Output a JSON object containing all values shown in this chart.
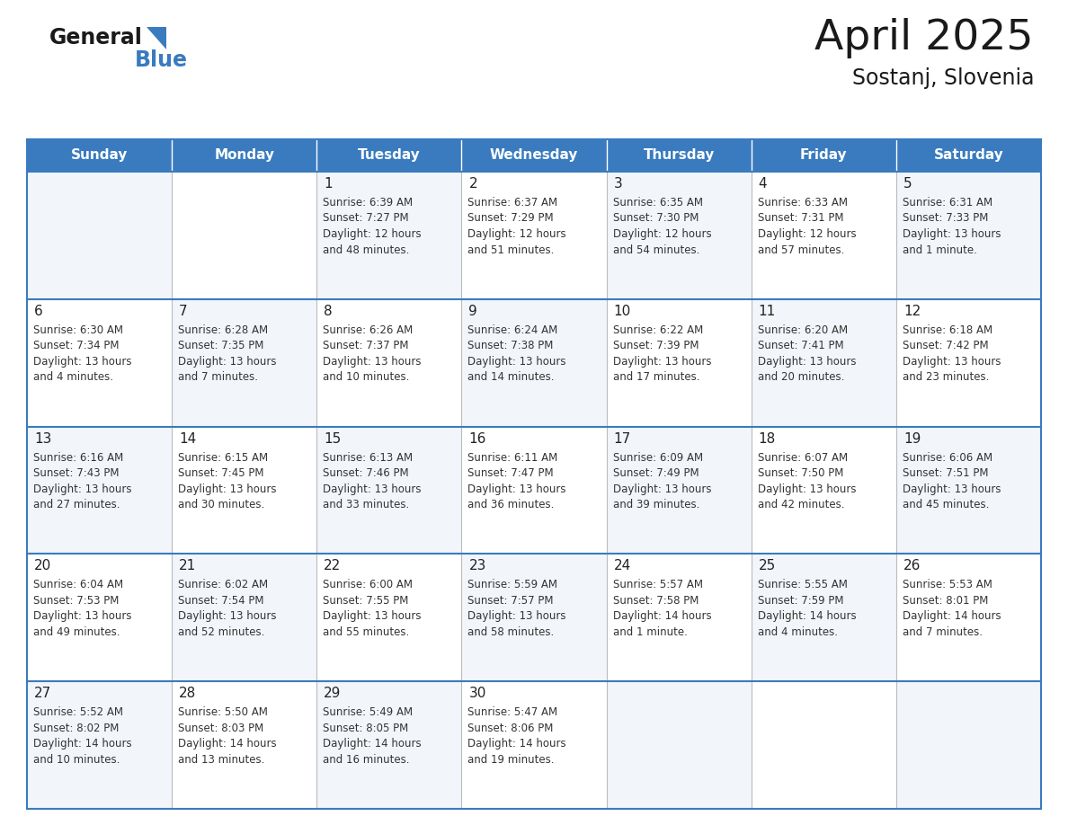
{
  "title": "April 2025",
  "subtitle": "Sostanj, Slovenia",
  "header_color": "#3a7bbf",
  "header_text_color": "#ffffff",
  "border_color": "#3a7bbf",
  "cell_border_color": "#3a7bbf",
  "inner_border_color": "#cccccc",
  "day_headers": [
    "Sunday",
    "Monday",
    "Tuesday",
    "Wednesday",
    "Thursday",
    "Friday",
    "Saturday"
  ],
  "weeks": [
    [
      {
        "day": "",
        "text": ""
      },
      {
        "day": "",
        "text": ""
      },
      {
        "day": "1",
        "text": "Sunrise: 6:39 AM\nSunset: 7:27 PM\nDaylight: 12 hours\nand 48 minutes."
      },
      {
        "day": "2",
        "text": "Sunrise: 6:37 AM\nSunset: 7:29 PM\nDaylight: 12 hours\nand 51 minutes."
      },
      {
        "day": "3",
        "text": "Sunrise: 6:35 AM\nSunset: 7:30 PM\nDaylight: 12 hours\nand 54 minutes."
      },
      {
        "day": "4",
        "text": "Sunrise: 6:33 AM\nSunset: 7:31 PM\nDaylight: 12 hours\nand 57 minutes."
      },
      {
        "day": "5",
        "text": "Sunrise: 6:31 AM\nSunset: 7:33 PM\nDaylight: 13 hours\nand 1 minute."
      }
    ],
    [
      {
        "day": "6",
        "text": "Sunrise: 6:30 AM\nSunset: 7:34 PM\nDaylight: 13 hours\nand 4 minutes."
      },
      {
        "day": "7",
        "text": "Sunrise: 6:28 AM\nSunset: 7:35 PM\nDaylight: 13 hours\nand 7 minutes."
      },
      {
        "day": "8",
        "text": "Sunrise: 6:26 AM\nSunset: 7:37 PM\nDaylight: 13 hours\nand 10 minutes."
      },
      {
        "day": "9",
        "text": "Sunrise: 6:24 AM\nSunset: 7:38 PM\nDaylight: 13 hours\nand 14 minutes."
      },
      {
        "day": "10",
        "text": "Sunrise: 6:22 AM\nSunset: 7:39 PM\nDaylight: 13 hours\nand 17 minutes."
      },
      {
        "day": "11",
        "text": "Sunrise: 6:20 AM\nSunset: 7:41 PM\nDaylight: 13 hours\nand 20 minutes."
      },
      {
        "day": "12",
        "text": "Sunrise: 6:18 AM\nSunset: 7:42 PM\nDaylight: 13 hours\nand 23 minutes."
      }
    ],
    [
      {
        "day": "13",
        "text": "Sunrise: 6:16 AM\nSunset: 7:43 PM\nDaylight: 13 hours\nand 27 minutes."
      },
      {
        "day": "14",
        "text": "Sunrise: 6:15 AM\nSunset: 7:45 PM\nDaylight: 13 hours\nand 30 minutes."
      },
      {
        "day": "15",
        "text": "Sunrise: 6:13 AM\nSunset: 7:46 PM\nDaylight: 13 hours\nand 33 minutes."
      },
      {
        "day": "16",
        "text": "Sunrise: 6:11 AM\nSunset: 7:47 PM\nDaylight: 13 hours\nand 36 minutes."
      },
      {
        "day": "17",
        "text": "Sunrise: 6:09 AM\nSunset: 7:49 PM\nDaylight: 13 hours\nand 39 minutes."
      },
      {
        "day": "18",
        "text": "Sunrise: 6:07 AM\nSunset: 7:50 PM\nDaylight: 13 hours\nand 42 minutes."
      },
      {
        "day": "19",
        "text": "Sunrise: 6:06 AM\nSunset: 7:51 PM\nDaylight: 13 hours\nand 45 minutes."
      }
    ],
    [
      {
        "day": "20",
        "text": "Sunrise: 6:04 AM\nSunset: 7:53 PM\nDaylight: 13 hours\nand 49 minutes."
      },
      {
        "day": "21",
        "text": "Sunrise: 6:02 AM\nSunset: 7:54 PM\nDaylight: 13 hours\nand 52 minutes."
      },
      {
        "day": "22",
        "text": "Sunrise: 6:00 AM\nSunset: 7:55 PM\nDaylight: 13 hours\nand 55 minutes."
      },
      {
        "day": "23",
        "text": "Sunrise: 5:59 AM\nSunset: 7:57 PM\nDaylight: 13 hours\nand 58 minutes."
      },
      {
        "day": "24",
        "text": "Sunrise: 5:57 AM\nSunset: 7:58 PM\nDaylight: 14 hours\nand 1 minute."
      },
      {
        "day": "25",
        "text": "Sunrise: 5:55 AM\nSunset: 7:59 PM\nDaylight: 14 hours\nand 4 minutes."
      },
      {
        "day": "26",
        "text": "Sunrise: 5:53 AM\nSunset: 8:01 PM\nDaylight: 14 hours\nand 7 minutes."
      }
    ],
    [
      {
        "day": "27",
        "text": "Sunrise: 5:52 AM\nSunset: 8:02 PM\nDaylight: 14 hours\nand 10 minutes."
      },
      {
        "day": "28",
        "text": "Sunrise: 5:50 AM\nSunset: 8:03 PM\nDaylight: 14 hours\nand 13 minutes."
      },
      {
        "day": "29",
        "text": "Sunrise: 5:49 AM\nSunset: 8:05 PM\nDaylight: 14 hours\nand 16 minutes."
      },
      {
        "day": "30",
        "text": "Sunrise: 5:47 AM\nSunset: 8:06 PM\nDaylight: 14 hours\nand 19 minutes."
      },
      {
        "day": "",
        "text": ""
      },
      {
        "day": "",
        "text": ""
      },
      {
        "day": "",
        "text": ""
      }
    ]
  ]
}
